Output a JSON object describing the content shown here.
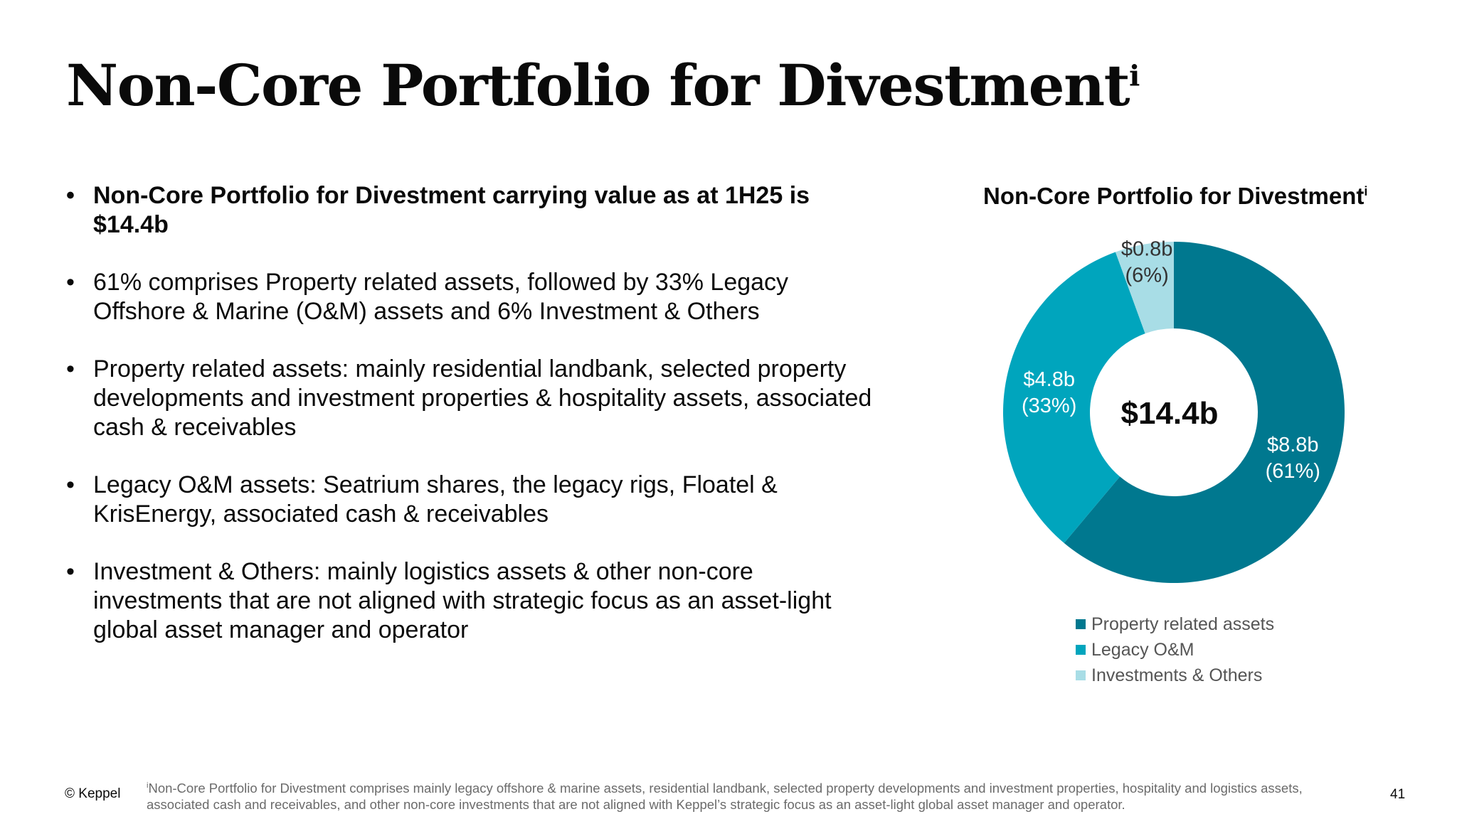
{
  "title": {
    "text": "Non-Core Portfolio for Divestment",
    "sup": "i"
  },
  "bullets": [
    {
      "text": "Non-Core Portfolio for Divestment carrying value as at 1H25 is $14.4b",
      "bold": true
    },
    {
      "text": "61% comprises Property related assets, followed by 33% Legacy Offshore & Marine (O&M) assets and 6% Investment & Others"
    },
    {
      "text": "Property related assets: mainly residential landbank, selected property developments and investment properties & hospitality assets, associated cash & receivables"
    },
    {
      "text": "Legacy O&M assets: Seatrium shares, the legacy rigs, Floatel & KrisEnergy, associated cash & receivables"
    },
    {
      "text": "Investment & Others: mainly logistics assets & other non-core investments that are not aligned with strategic focus as an asset-light global asset manager and operator"
    }
  ],
  "bullet_symbol": "•",
  "chart_data": {
    "type": "pie",
    "title": "Non-Core Portfolio for Divestment",
    "title_sup": "i",
    "center_label": "$14.4b",
    "categories": [
      "Property related assets",
      "Legacy O&M",
      "Investments & Others"
    ],
    "values": [
      8.8,
      4.8,
      0.8
    ],
    "percentages": [
      61,
      33,
      6
    ],
    "data_labels": [
      {
        "value": "$8.8b",
        "percent": "(61%)"
      },
      {
        "value": "$4.8b",
        "percent": "(33%)"
      },
      {
        "value": "$0.8b",
        "percent": "(6%)"
      }
    ],
    "colors": [
      "#00788f",
      "#00a5bd",
      "#a8dde6"
    ],
    "legend_position": "bottom",
    "donut": true
  },
  "footer": {
    "copyright": "© Keppel",
    "footnote_sup": "i",
    "footnote": "Non-Core Portfolio for Divestment comprises mainly legacy offshore & marine assets, residential landbank, selected property developments and investment properties, hospitality and logistics assets, associated cash and receivables, and other non-core investments that are not aligned with Keppel’s strategic focus as an asset-light global asset manager and operator.",
    "page_number": "41"
  }
}
